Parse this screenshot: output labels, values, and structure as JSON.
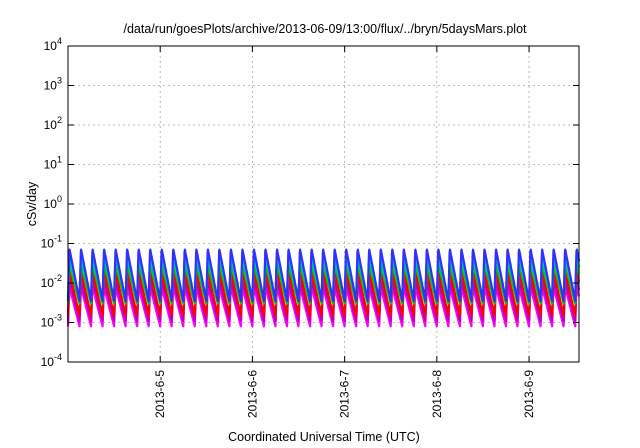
{
  "chart_data": {
    "type": "line",
    "title": "/data/run/goesPlots/archive/2013-06-09/13:00/flux/../bryn/5daysMars.plot",
    "xlabel": "Coordinated Universal Time (UTC)",
    "ylabel": "cSv/day",
    "yscale": "log",
    "ylim": [
      0.0001,
      10000
    ],
    "y_ticks": [
      {
        "base": "10",
        "exp": "-4"
      },
      {
        "base": "10",
        "exp": "-3"
      },
      {
        "base": "10",
        "exp": "-2"
      },
      {
        "base": "10",
        "exp": "-1"
      },
      {
        "base": "10",
        "exp": "0"
      },
      {
        "base": "10",
        "exp": "1"
      },
      {
        "base": "10",
        "exp": "2"
      },
      {
        "base": "10",
        "exp": "3"
      },
      {
        "base": "10",
        "exp": "4"
      }
    ],
    "xlim": [
      "2013-06-04 00:00",
      "2013-06-09 13:00"
    ],
    "x_ticks": [
      "2013-6-5",
      "2013-6-6",
      "2013-6-7",
      "2013-6-8",
      "2013-6-9"
    ],
    "grid": true,
    "legend": "none",
    "cycle_hours": 3,
    "series": [
      {
        "color": "#3030ff",
        "peak": 0.075,
        "trough": 0.0035
      },
      {
        "color": "#00bbbb",
        "peak": 0.045,
        "trough": 0.004
      },
      {
        "color": "#00cc00",
        "peak": 0.03,
        "trough": 0.003
      },
      {
        "color": "#ff0000",
        "peak": 0.02,
        "trough": 0.0015
      },
      {
        "color": "#bb00bb",
        "peak": 0.012,
        "trough": 0.0011
      },
      {
        "color": "#ff00ff",
        "peak": 0.008,
        "trough": 0.0008
      }
    ]
  }
}
